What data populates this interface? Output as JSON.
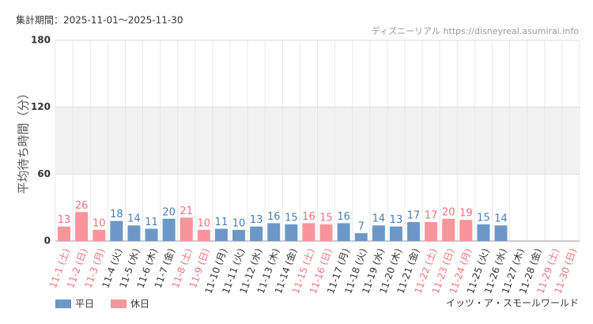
{
  "chart_data": {
    "type": "bar",
    "period": "集計期間：2025-11-01～2025-11-30",
    "source": "ディズニーリアル https://disneyreal.asumirai.info",
    "attraction": "イッツ・ア・スモールワールド",
    "y_label": "平均待ち時間（分）",
    "categories": [
      "11-1 (土)",
      "11-2 (日)",
      "11-3 (月)",
      "11-4 (火)",
      "11-5 (水)",
      "11-6 (木)",
      "11-7 (金)",
      "11-8 (土)",
      "11-9 (日)",
      "11-10 (月)",
      "11-11 (火)",
      "11-12 (水)",
      "11-13 (木)",
      "11-14 (金)",
      "11-15 (土)",
      "11-16 (日)",
      "11-17 (月)",
      "11-18 (火)",
      "11-19 (水)",
      "11-20 (木)",
      "11-21 (金)",
      "11-22 (土)",
      "11-23 (日)",
      "11-24 (月)",
      "11-25 (火)",
      "11-26 (水)",
      "11-27 (木)",
      "11-28 (金)",
      "11-29 (土)",
      "11-30 (日)"
    ],
    "category_colors": [
      "#f0727a",
      "#f0727a",
      "#f0727a",
      "#333333",
      "#333333",
      "#333333",
      "#333333",
      "#f0727a",
      "#f0727a",
      "#333333",
      "#333333",
      "#333333",
      "#333333",
      "#333333",
      "#f0727a",
      "#f0727a",
      "#333333",
      "#333333",
      "#333333",
      "#333333",
      "#333333",
      "#f0727a",
      "#f0727a",
      "#f0727a",
      "#333333",
      "#333333",
      "#333333",
      "#333333",
      "#f0727a",
      "#f0727a"
    ],
    "series": [
      {
        "name": "平日",
        "color": "#6b98c6",
        "label_color": "#4a7db3",
        "values": [
          null,
          null,
          null,
          18,
          14,
          11,
          20,
          null,
          null,
          11,
          10,
          13,
          16,
          15,
          null,
          null,
          16,
          7,
          14,
          13,
          17,
          null,
          null,
          null,
          15,
          14,
          null,
          null,
          null,
          null
        ]
      },
      {
        "name": "休日",
        "color": "#f7959b",
        "label_color": "#f0727a",
        "values": [
          13,
          26,
          10,
          null,
          null,
          null,
          null,
          21,
          10,
          null,
          null,
          null,
          null,
          null,
          16,
          15,
          null,
          null,
          null,
          null,
          null,
          17,
          20,
          19,
          null,
          null,
          null,
          null,
          null,
          null
        ]
      }
    ],
    "ylim": [
      0,
      180
    ],
    "yticks": [
      0,
      60,
      120,
      180
    ],
    "grid": true
  }
}
